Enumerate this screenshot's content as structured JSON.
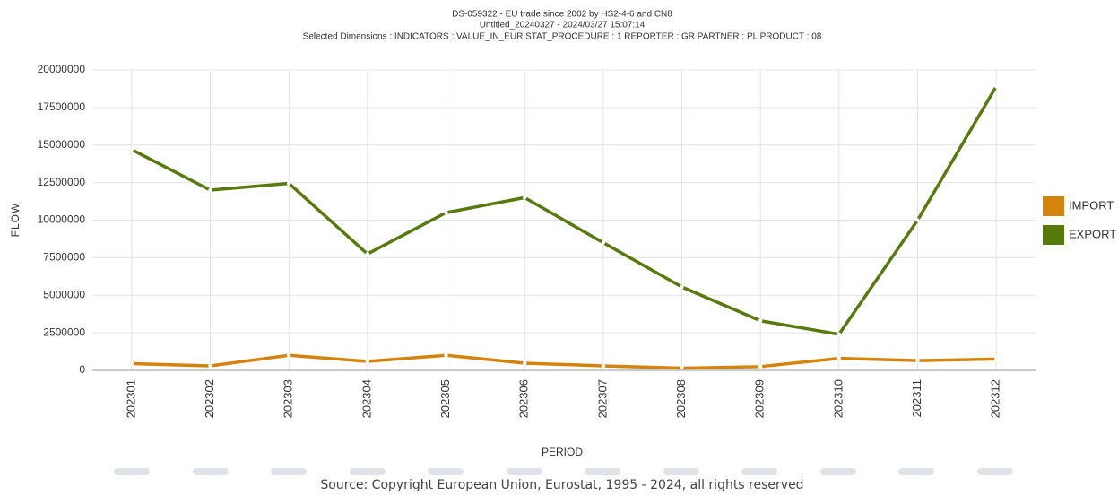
{
  "chart_data": {
    "type": "line",
    "title": "DS-059322 - EU trade since 2002 by HS2-4-6 and CN8",
    "subtitle": "Untitled_20240327 - 2024/03/27 15:07:14",
    "dimensions": "Selected Dimensions : INDICATORS : VALUE_IN_EUR   STAT_PROCEDURE : 1   REPORTER : GR   PARTNER : PL   PRODUCT : 08",
    "x_label": "PERIOD",
    "y_label": "FLOW",
    "source": "Source: Copyright European Union, Eurostat, 1995 - 2024, all rights reserved",
    "categories": [
      "202301",
      "202302",
      "202303",
      "202304",
      "202305",
      "202306",
      "202307",
      "202308",
      "202309",
      "202310",
      "202311",
      "202312"
    ],
    "series": [
      {
        "name": "IMPORT",
        "color": "#d4840c",
        "values": [
          450000,
          300000,
          1000000,
          600000,
          1000000,
          480000,
          300000,
          150000,
          250000,
          800000,
          650000,
          750000
        ]
      },
      {
        "name": "EXPORT",
        "color": "#567a0c",
        "values": [
          14700000,
          12000000,
          12450000,
          7750000,
          10500000,
          11500000,
          8500000,
          5550000,
          3300000,
          2400000,
          10000000,
          18900000
        ]
      }
    ],
    "ylim": [
      0,
      20000000
    ],
    "yticks": [
      0,
      2500000,
      5000000,
      7500000,
      10000000,
      12500000,
      15000000,
      17500000,
      20000000
    ],
    "grid": true,
    "legend": "right"
  }
}
